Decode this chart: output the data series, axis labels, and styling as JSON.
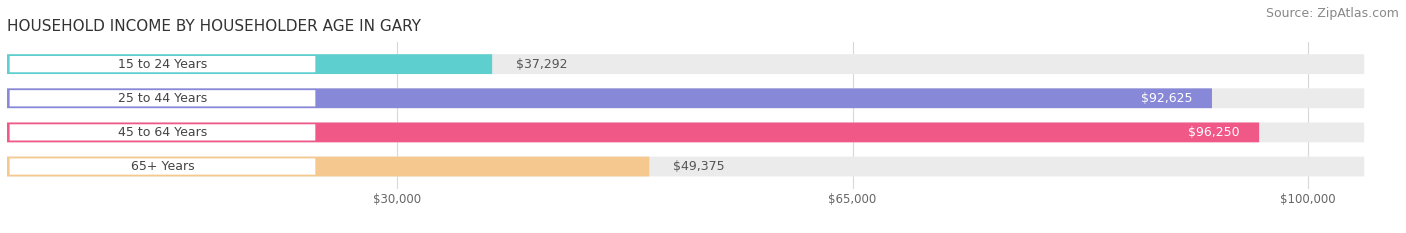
{
  "title": "HOUSEHOLD INCOME BY HOUSEHOLDER AGE IN GARY",
  "source": "Source: ZipAtlas.com",
  "categories": [
    "15 to 24 Years",
    "25 to 44 Years",
    "45 to 64 Years",
    "65+ Years"
  ],
  "values": [
    37292,
    92625,
    96250,
    49375
  ],
  "bar_colors": [
    "#5ecfcf",
    "#8888d8",
    "#f05888",
    "#f5c890"
  ],
  "bar_bg_color": "#ebebeb",
  "value_labels": [
    "$37,292",
    "$92,625",
    "$96,250",
    "$49,375"
  ],
  "label_inside": [
    false,
    true,
    true,
    false
  ],
  "x_ticks": [
    30000,
    65000,
    100000
  ],
  "x_tick_labels": [
    "$30,000",
    "$65,000",
    "$100,000"
  ],
  "xlim_max": 107000,
  "title_fontsize": 11,
  "source_fontsize": 9,
  "bar_label_fontsize": 9,
  "category_fontsize": 9,
  "tick_fontsize": 8.5,
  "background_color": "#ffffff",
  "label_pill_color": "#ffffff",
  "label_text_color": "#444444",
  "grid_color": "#d8d8d8"
}
